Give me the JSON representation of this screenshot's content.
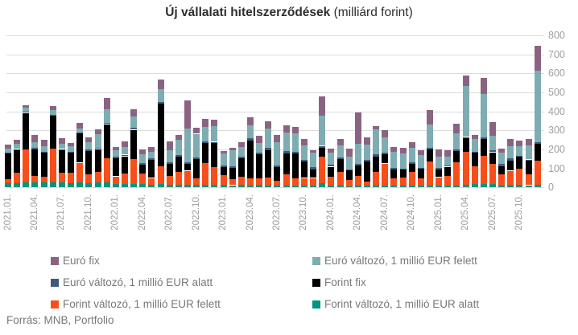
{
  "title": {
    "bold": "Új vállalati hitelszerződések",
    "normal": " (milliárd forint)"
  },
  "source": "Forrás: MNB, Portfolio",
  "chart_data": {
    "type": "bar",
    "stacked": true,
    "title": "Új vállalati hitelszerződések (milliárd forint)",
    "xlabel": "",
    "ylabel": "",
    "unit": "milliárd forint",
    "ylim": [
      0,
      800
    ],
    "yticks": [
      0,
      100,
      200,
      300,
      400,
      500,
      600,
      700,
      800
    ],
    "grid": true,
    "y_axis_side": "right",
    "legend_position": "bottom",
    "x_tick_every": 3,
    "categories": [
      "2021.01.",
      "2021.02.",
      "2021.03.",
      "2021.04.",
      "2021.05.",
      "2021.06.",
      "2021.07.",
      "2021.08.",
      "2021.09.",
      "2021.10.",
      "2021.11.",
      "2021.12.",
      "2022.01.",
      "2022.02.",
      "2022.03.",
      "2022.04.",
      "2022.05.",
      "2022.06.",
      "2022.07.",
      "2022.08.",
      "2022.09.",
      "2022.10.",
      "2022.11.",
      "2022.12.",
      "2023.01.",
      "2023.02.",
      "2023.03.",
      "2023.04.",
      "2023.05.",
      "2023.06.",
      "2023.07.",
      "2023.08.",
      "2023.09.",
      "2023.10.",
      "2023.11.",
      "2023.12.",
      "2024.01.",
      "2024.02.",
      "2024.03.",
      "2024.04.",
      "2024.05.",
      "2024.06.",
      "2024.07.",
      "2024.08.",
      "2024.09.",
      "2024.10.",
      "2024.11.",
      "2024.12.",
      "2025.01.",
      "2025.02.",
      "2025.03.",
      "2025.04.",
      "2025.05.",
      "2025.06.",
      "2025.07.",
      "2025.08.",
      "2025.09.",
      "2025.10.",
      "2025.11.",
      "2025.12."
    ],
    "series": [
      {
        "name": "Forint változó, 1 millió EUR alatt",
        "color": "#00957c",
        "values": [
          22,
          24,
          25,
          25,
          25,
          25,
          25,
          24,
          25,
          24,
          25,
          25,
          18,
          18,
          18,
          18,
          15,
          20,
          15,
          15,
          15,
          15,
          14,
          15,
          14,
          12,
          15,
          11,
          15,
          11,
          11,
          11,
          8,
          11,
          8,
          21,
          8,
          11,
          7,
          8,
          8,
          8,
          11,
          11,
          8,
          11,
          11,
          11,
          8,
          8,
          11,
          15,
          18,
          18,
          18,
          11,
          15,
          15,
          12,
          14
        ]
      },
      {
        "name": "Forint változó, 1 millió EUR felett",
        "color": "#f74e1a",
        "values": [
          22,
          52,
          175,
          34,
          31,
          180,
          54,
          55,
          105,
          44,
          55,
          130,
          40,
          54,
          130,
          54,
          35,
          90,
          45,
          66,
          73,
          31,
          113,
          90,
          49,
          30,
          42,
          35,
          31,
          42,
          24,
          56,
          38,
          39,
          42,
          142,
          49,
          70,
          32,
          52,
          23,
          73,
          115,
          35,
          45,
          70,
          35,
          127,
          46,
          52,
          120,
          172,
          92,
          148,
          106,
          56,
          73,
          85,
          55,
          126
        ]
      },
      {
        "name": "Forint fix",
        "color": "#000000",
        "values": [
          135,
          120,
          192,
          141,
          127,
          172,
          118,
          105,
          155,
          124,
          122,
          178,
          96,
          92,
          155,
          48,
          94,
          330,
          63,
          80,
          35,
          103,
          106,
          127,
          42,
          60,
          96,
          202,
          127,
          144,
          72,
          113,
          134,
          85,
          46,
          45,
          52,
          68,
          52,
          56,
          104,
          82,
          47,
          49,
          42,
          42,
          52,
          61,
          42,
          49,
          60,
          72,
          73,
          89,
          61,
          46,
          54,
          63,
          72,
          88
        ]
      },
      {
        "name": "Euró változó, 1 millió EUR alatt",
        "color": "#3d5a7e",
        "values": [
          5,
          6,
          6,
          8,
          5,
          5,
          5,
          5,
          5,
          6,
          5,
          7,
          7,
          8,
          9,
          9,
          8,
          10,
          10,
          10,
          8,
          10,
          10,
          8,
          10,
          8,
          10,
          10,
          10,
          11,
          8,
          11,
          8,
          10,
          10,
          11,
          11,
          10,
          5,
          6,
          8,
          10,
          10,
          6,
          5,
          11,
          5,
          10,
          5,
          7,
          8,
          6,
          5,
          10,
          10,
          10,
          10,
          5,
          8,
          8
        ]
      },
      {
        "name": "Euró változó, 1 millió EUR felett",
        "color": "#7dadb2",
        "values": [
          22,
          28,
          22,
          28,
          28,
          25,
          28,
          26,
          21,
          38,
          72,
          70,
          36,
          42,
          60,
          46,
          35,
          65,
          62,
          78,
          180,
          123,
          75,
          82,
          65,
          87,
          49,
          70,
          51,
          101,
          123,
          99,
          96,
          77,
          76,
          158,
          62,
          63,
          65,
          108,
          82,
          131,
          82,
          87,
          77,
          73,
          68,
          120,
          62,
          47,
          85,
          270,
          68,
          225,
          78,
          59,
          63,
          48,
          75,
          377
        ]
      },
      {
        "name": "Euró fix",
        "color": "#8b6382",
        "values": [
          19,
          21,
          11,
          42,
          35,
          23,
          28,
          17,
          28,
          28,
          28,
          62,
          17,
          30,
          38,
          24,
          24,
          52,
          47,
          25,
          148,
          30,
          42,
          35,
          10,
          10,
          28,
          42,
          38,
          39,
          38,
          38,
          34,
          31,
          14,
          101,
          23,
          35,
          42,
          166,
          38,
          20,
          38,
          25,
          32,
          31,
          24,
          77,
          35,
          34,
          50,
          52,
          21,
          85,
          70,
          23,
          38,
          32,
          32,
          130
        ]
      }
    ],
    "legend_series_order": [
      5,
      4,
      3,
      2,
      1,
      0
    ]
  }
}
